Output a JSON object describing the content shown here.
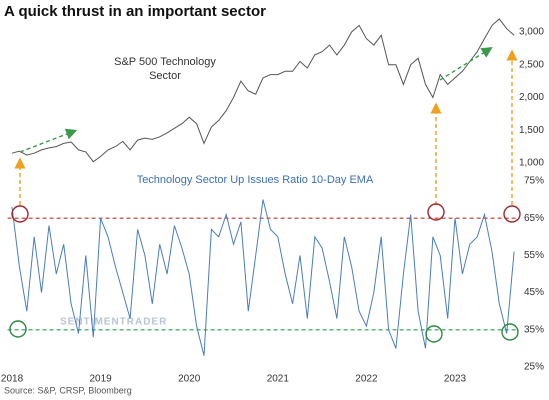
{
  "chart_data": [
    {
      "type": "line",
      "title": "A quick thrust in an important sector",
      "annotation": "S&P 500 Technology",
      "annotation2": "Sector",
      "color": "#555555",
      "x": [
        2018.0,
        2018.083,
        2018.167,
        2018.25,
        2018.333,
        2018.417,
        2018.5,
        2018.583,
        2018.667,
        2018.75,
        2018.833,
        2018.917,
        2019.0,
        2019.083,
        2019.167,
        2019.25,
        2019.333,
        2019.417,
        2019.5,
        2019.583,
        2019.667,
        2019.75,
        2019.833,
        2019.917,
        2020.0,
        2020.083,
        2020.167,
        2020.25,
        2020.333,
        2020.417,
        2020.5,
        2020.583,
        2020.667,
        2020.75,
        2020.833,
        2020.917,
        2021.0,
        2021.083,
        2021.167,
        2021.25,
        2021.333,
        2021.417,
        2021.5,
        2021.583,
        2021.667,
        2021.75,
        2021.833,
        2021.917,
        2022.0,
        2022.083,
        2022.167,
        2022.25,
        2022.333,
        2022.417,
        2022.5,
        2022.583,
        2022.667,
        2022.75,
        2022.833,
        2022.917,
        2023.0,
        2023.083,
        2023.167,
        2023.25,
        2023.333,
        2023.417,
        2023.5,
        2023.583,
        2023.667
      ],
      "values": [
        1150,
        1180,
        1120,
        1150,
        1200,
        1230,
        1250,
        1300,
        1320,
        1200,
        1170,
        1020,
        1100,
        1200,
        1250,
        1330,
        1200,
        1350,
        1380,
        1360,
        1400,
        1460,
        1530,
        1600,
        1700,
        1600,
        1300,
        1550,
        1650,
        1800,
        2000,
        2250,
        2100,
        2050,
        2300,
        2350,
        2350,
        2400,
        2400,
        2550,
        2450,
        2650,
        2700,
        2800,
        2650,
        2800,
        3000,
        3100,
        2900,
        2800,
        2950,
        2500,
        2500,
        2200,
        2500,
        2600,
        2200,
        2000,
        2350,
        2200,
        2300,
        2400,
        2550,
        2700,
        2900,
        3100,
        3200,
        3050,
        2950
      ],
      "xlim": [
        2017.95,
        2023.72
      ],
      "ylim": [
        900,
        3200
      ],
      "yticks": [
        {
          "value": 1000,
          "label": "1,000"
        },
        {
          "value": 1500,
          "label": "1,500"
        },
        {
          "value": 2000,
          "label": "2,000"
        },
        {
          "value": 2500,
          "label": "2,500"
        },
        {
          "value": 3000,
          "label": "3,000"
        }
      ]
    },
    {
      "type": "line",
      "title": "Technology Sector Up Issues Ratio 10-Day EMA",
      "source": "Source: S&P, CRSP, Bloomberg",
      "watermark": "SENTIMENTRADER",
      "color": "#4a7ebb",
      "x": [
        2018.0,
        2018.083,
        2018.167,
        2018.25,
        2018.333,
        2018.417,
        2018.5,
        2018.583,
        2018.667,
        2018.75,
        2018.833,
        2018.917,
        2019.0,
        2019.083,
        2019.167,
        2019.25,
        2019.333,
        2019.417,
        2019.5,
        2019.583,
        2019.667,
        2019.75,
        2019.833,
        2019.917,
        2020.0,
        2020.083,
        2020.167,
        2020.25,
        2020.333,
        2020.417,
        2020.5,
        2020.583,
        2020.667,
        2020.75,
        2020.833,
        2020.917,
        2021.0,
        2021.083,
        2021.167,
        2021.25,
        2021.333,
        2021.417,
        2021.5,
        2021.583,
        2021.667,
        2021.75,
        2021.833,
        2021.917,
        2022.0,
        2022.083,
        2022.167,
        2022.25,
        2022.333,
        2022.417,
        2022.5,
        2022.583,
        2022.667,
        2022.75,
        2022.833,
        2022.917,
        2023.0,
        2023.083,
        2023.167,
        2023.25,
        2023.333,
        2023.417,
        2023.5,
        2023.583,
        2023.667
      ],
      "values": [
        68,
        52,
        40,
        60,
        45,
        63,
        50,
        58,
        42,
        34,
        55,
        33,
        65,
        60,
        52,
        45,
        38,
        62,
        55,
        42,
        58,
        50,
        63,
        57,
        50,
        36,
        28,
        62,
        60,
        66,
        58,
        64,
        40,
        55,
        70,
        62,
        60,
        50,
        42,
        55,
        38,
        60,
        57,
        48,
        38,
        60,
        52,
        40,
        36,
        45,
        60,
        35,
        30,
        50,
        66,
        40,
        30,
        60,
        55,
        38,
        65,
        50,
        58,
        60,
        66,
        56,
        42,
        34,
        56
      ],
      "xlim": [
        2017.95,
        2023.72
      ],
      "ylim": [
        25,
        75
      ],
      "xticks": [
        2018,
        2019,
        2020,
        2021,
        2022,
        2023
      ],
      "yticks": [
        {
          "value": 25,
          "label": "25%"
        },
        {
          "value": 35,
          "label": "35%"
        },
        {
          "value": 45,
          "label": "45%"
        },
        {
          "value": 55,
          "label": "55%"
        },
        {
          "value": 65,
          "label": "65%"
        },
        {
          "value": 75,
          "label": "75%"
        }
      ],
      "hlines": [
        {
          "value": 65,
          "color": "#c0392b"
        },
        {
          "value": 35,
          "color": "#2e9e4f"
        }
      ]
    }
  ]
}
